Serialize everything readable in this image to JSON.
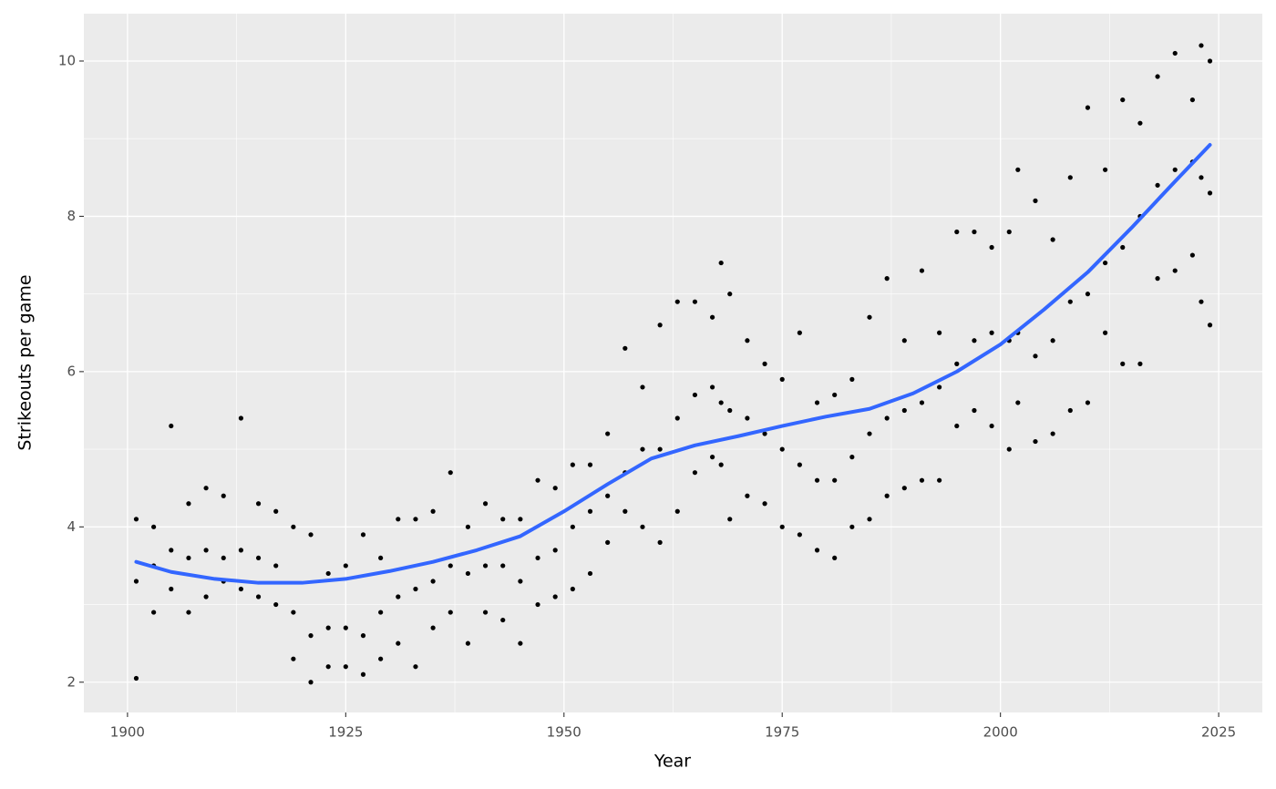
{
  "chart_data": {
    "type": "scatter",
    "x_label": "Year",
    "y_label": "Strikeouts per game",
    "xlim": [
      1895,
      2030
    ],
    "ylim": [
      1.61,
      10.61
    ],
    "xticks": [
      1900,
      1925,
      1950,
      1975,
      2000,
      2025
    ],
    "yticks": [
      2,
      4,
      6,
      8,
      10
    ],
    "grid": true,
    "points": {
      "color": "#000000",
      "x": [
        1901,
        1901,
        1901,
        1903,
        1903,
        1903,
        1905,
        1905,
        1905,
        1907,
        1907,
        1907,
        1909,
        1909,
        1909,
        1911,
        1911,
        1911,
        1913,
        1913,
        1913,
        1915,
        1915,
        1915,
        1917,
        1917,
        1917,
        1919,
        1919,
        1919,
        1921,
        1921,
        1921,
        1923,
        1923,
        1923,
        1925,
        1925,
        1925,
        1927,
        1927,
        1927,
        1929,
        1929,
        1929,
        1931,
        1931,
        1931,
        1933,
        1933,
        1933,
        1935,
        1935,
        1935,
        1937,
        1937,
        1937,
        1939,
        1939,
        1939,
        1941,
        1941,
        1941,
        1943,
        1943,
        1943,
        1945,
        1945,
        1945,
        1947,
        1947,
        1947,
        1949,
        1949,
        1949,
        1951,
        1951,
        1951,
        1953,
        1953,
        1953,
        1955,
        1955,
        1955,
        1957,
        1957,
        1957,
        1959,
        1959,
        1959,
        1961,
        1961,
        1961,
        1963,
        1963,
        1963,
        1965,
        1965,
        1965,
        1967,
        1967,
        1967,
        1968,
        1968,
        1968,
        1969,
        1969,
        1969,
        1971,
        1971,
        1971,
        1973,
        1973,
        1973,
        1975,
        1975,
        1975,
        1977,
        1977,
        1977,
        1979,
        1979,
        1979,
        1981,
        1981,
        1981,
        1983,
        1983,
        1983,
        1985,
        1985,
        1985,
        1987,
        1987,
        1987,
        1989,
        1989,
        1989,
        1991,
        1991,
        1991,
        1993,
        1993,
        1993,
        1995,
        1995,
        1995,
        1997,
        1997,
        1997,
        1999,
        1999,
        1999,
        2001,
        2001,
        2001,
        2002,
        2002,
        2002,
        2004,
        2004,
        2004,
        2006,
        2006,
        2006,
        2008,
        2008,
        2008,
        2010,
        2010,
        2010,
        2012,
        2012,
        2012,
        2014,
        2014,
        2014,
        2016,
        2016,
        2016,
        2018,
        2018,
        2018,
        2020,
        2020,
        2020,
        2022,
        2022,
        2022,
        2023,
        2023,
        2023,
        2024,
        2024,
        2024
      ],
      "y": [
        2.05,
        3.3,
        4.1,
        2.9,
        3.5,
        4.0,
        3.2,
        3.7,
        5.3,
        2.9,
        3.6,
        4.3,
        3.1,
        3.7,
        4.5,
        3.3,
        3.6,
        4.4,
        3.2,
        3.7,
        5.4,
        3.1,
        3.6,
        4.3,
        3.0,
        3.5,
        4.2,
        2.3,
        2.9,
        4.0,
        2.0,
        2.6,
        3.9,
        2.2,
        2.7,
        3.4,
        2.2,
        2.7,
        3.5,
        2.1,
        2.6,
        3.9,
        2.3,
        2.9,
        3.6,
        2.5,
        3.1,
        4.1,
        2.2,
        3.2,
        4.1,
        2.7,
        3.3,
        4.2,
        2.9,
        3.5,
        4.7,
        2.5,
        3.4,
        4.0,
        2.9,
        3.5,
        4.3,
        2.8,
        3.5,
        4.1,
        2.5,
        3.3,
        4.1,
        3.0,
        3.6,
        4.6,
        3.1,
        3.7,
        4.5,
        3.2,
        4.0,
        4.8,
        3.4,
        4.2,
        4.8,
        3.8,
        4.4,
        5.2,
        4.2,
        4.7,
        6.3,
        4.0,
        5.0,
        5.8,
        3.8,
        5.0,
        6.6,
        4.2,
        5.4,
        6.9,
        4.7,
        5.7,
        6.9,
        4.9,
        5.8,
        6.7,
        4.8,
        5.6,
        7.4,
        4.1,
        5.5,
        7.0,
        4.4,
        5.4,
        6.4,
        4.3,
        5.2,
        6.1,
        4.0,
        5.0,
        5.9,
        3.9,
        4.8,
        6.5,
        3.7,
        4.6,
        5.6,
        3.6,
        4.6,
        5.7,
        4.0,
        4.9,
        5.9,
        4.1,
        5.2,
        6.7,
        4.4,
        5.4,
        7.2,
        4.5,
        5.5,
        6.4,
        4.6,
        5.6,
        7.3,
        4.6,
        5.8,
        6.5,
        5.3,
        6.1,
        7.8,
        5.5,
        6.4,
        7.8,
        5.3,
        6.5,
        7.6,
        5.0,
        6.4,
        7.8,
        5.6,
        6.5,
        8.6,
        5.1,
        6.2,
        8.2,
        5.2,
        6.4,
        7.7,
        5.5,
        6.9,
        8.5,
        5.6,
        7.0,
        9.4,
        6.5,
        7.4,
        8.6,
        6.1,
        7.6,
        9.5,
        6.1,
        8.0,
        9.2,
        7.2,
        8.4,
        9.8,
        7.3,
        8.6,
        10.1,
        7.5,
        8.7,
        9.5,
        6.9,
        8.5,
        10.2,
        6.6,
        8.3,
        10.0
      ]
    },
    "smooth": {
      "color": "#3366ff",
      "x": [
        1901,
        1905,
        1910,
        1915,
        1920,
        1925,
        1930,
        1935,
        1940,
        1945,
        1950,
        1955,
        1960,
        1965,
        1970,
        1975,
        1980,
        1985,
        1990,
        1995,
        2000,
        2005,
        2010,
        2015,
        2020,
        2024
      ],
      "y": [
        3.55,
        3.42,
        3.33,
        3.28,
        3.28,
        3.33,
        3.43,
        3.55,
        3.7,
        3.88,
        4.2,
        4.55,
        4.88,
        5.05,
        5.17,
        5.3,
        5.42,
        5.52,
        5.72,
        6.0,
        6.35,
        6.8,
        7.28,
        7.85,
        8.45,
        8.92
      ]
    }
  }
}
